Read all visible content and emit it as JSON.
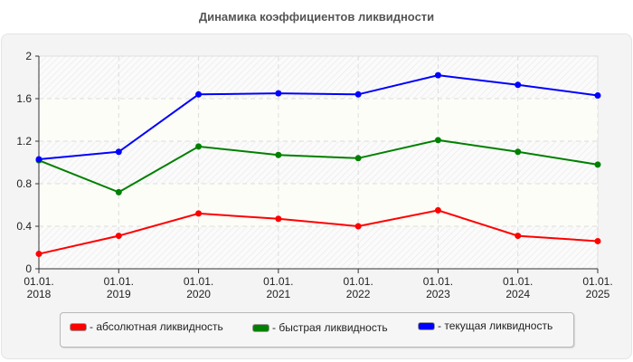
{
  "title": "Динамика коэффициентов ликвидности",
  "chart_data": {
    "type": "line",
    "title": "Динамика коэффициентов ликвидности",
    "xlabel": "",
    "ylabel": "",
    "categories": [
      "01.01.2018",
      "01.01.2019",
      "01.01.2020",
      "01.01.2021",
      "01.01.2022",
      "01.01.2023",
      "01.01.2024",
      "01.01.2025"
    ],
    "x_tick_labels": [
      [
        "01.01.",
        "2018"
      ],
      [
        "01.01.",
        "2019"
      ],
      [
        "01.01.",
        "2020"
      ],
      [
        "01.01.",
        "2021"
      ],
      [
        "01.01.",
        "2022"
      ],
      [
        "01.01.",
        "2023"
      ],
      [
        "01.01.",
        "2024"
      ],
      [
        "01.01.",
        "2025"
      ]
    ],
    "ylim": [
      0,
      2
    ],
    "y_ticks": [
      0,
      0.4,
      0.8,
      1.2,
      1.6,
      2
    ],
    "y_tick_labels": [
      "0",
      "0.4",
      "0.8",
      "1.2",
      "1.6",
      "2"
    ],
    "grid": true,
    "legend_position": "bottom",
    "series": [
      {
        "name": "абсолютная ликвидность",
        "color": "#ff0000",
        "values": [
          0.14,
          0.31,
          0.52,
          0.47,
          0.4,
          0.55,
          0.31,
          0.26
        ]
      },
      {
        "name": "быстрая ликвидность",
        "color": "#008000",
        "values": [
          1.02,
          0.72,
          1.15,
          1.07,
          1.04,
          1.21,
          1.1,
          0.98
        ]
      },
      {
        "name": "текущая ликвидность",
        "color": "#0000ff",
        "values": [
          1.03,
          1.1,
          1.64,
          1.65,
          1.64,
          1.82,
          1.73,
          1.63
        ]
      }
    ]
  },
  "legend": {
    "items": [
      {
        "label": "- абсолютная ликвидность",
        "color": "#ff0000"
      },
      {
        "label": "- быстрая ликвидность",
        "color": "#008000"
      },
      {
        "label": "- текущая ликвидность",
        "color": "#0000ff"
      }
    ]
  }
}
